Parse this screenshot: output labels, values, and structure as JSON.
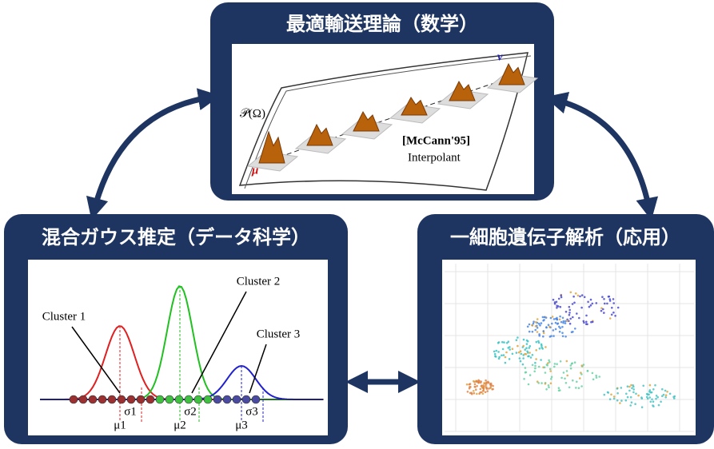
{
  "panels": [
    {
      "title": "最適輸送理論（数学）",
      "labels": {
        "space": "𝒫(Ω)",
        "source": "μ",
        "target": "ν",
        "citation": "[McCann'95]",
        "caption": "Interpolant"
      }
    },
    {
      "title": "混合ガウス推定（データ科学）",
      "clusters": [
        {
          "name": "Cluster 1",
          "mean": "μ1",
          "sd": "σ1"
        },
        {
          "name": "Cluster 2",
          "mean": "μ2",
          "sd": "σ2"
        },
        {
          "name": "Cluster 3",
          "mean": "μ3",
          "sd": "σ3"
        }
      ]
    },
    {
      "title": "一細胞遺伝子解析（応用）"
    }
  ]
}
